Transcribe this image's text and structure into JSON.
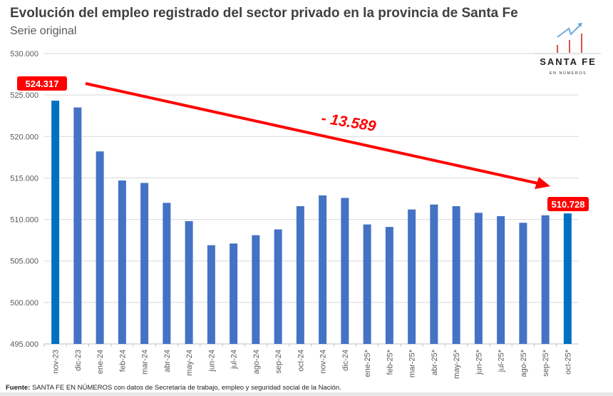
{
  "title": "Evolución del empleo registrado del sector privado en la provincia de Santa Fe",
  "subtitle": "Serie original",
  "logo": {
    "text": "SANTA FE",
    "subtext": "EN NÚMEROS"
  },
  "footer": {
    "label": "Fuente:",
    "text": " SANTA FE EN NÚMEROS con datos de Secretaría de trabajo, empleo y seguridad social de la Nación."
  },
  "chart_data": {
    "type": "bar",
    "title": "Evolución del empleo registrado del sector privado en la provincia de Santa Fe",
    "subtitle": "Serie original",
    "categories": [
      "nov-23",
      "dic-23",
      "ene-24",
      "feb-24",
      "mar-24",
      "abr-24",
      "may-24",
      "jun-24",
      "jul-24",
      "ago-24",
      "sep-24",
      "oct-24",
      "nov-24",
      "dic-24",
      "ene-25*",
      "feb-25*",
      "mar-25*",
      "abr-25*",
      "may-25*",
      "jun-25*",
      "jul-25*",
      "ago-25*",
      "sep-25*",
      "oct-25*"
    ],
    "values": [
      524317,
      523500,
      518200,
      514700,
      514400,
      512000,
      509800,
      506900,
      507100,
      508100,
      508800,
      511600,
      512900,
      512600,
      509400,
      509100,
      511200,
      511800,
      511600,
      510800,
      510400,
      509600,
      510500,
      510728
    ],
    "ylim": [
      495000,
      530000
    ],
    "yticks": [
      "495.000",
      "500.000",
      "505.000",
      "510.000",
      "515.000",
      "520.000",
      "525.000",
      "530.000"
    ],
    "grid": true,
    "bar_color": "#4472c4",
    "highlight_color": "#0070c0",
    "annotations": {
      "start_label": "524.317",
      "end_label": "510.728",
      "difference": "- 13.589",
      "arrow_color": "#ff0000"
    }
  }
}
